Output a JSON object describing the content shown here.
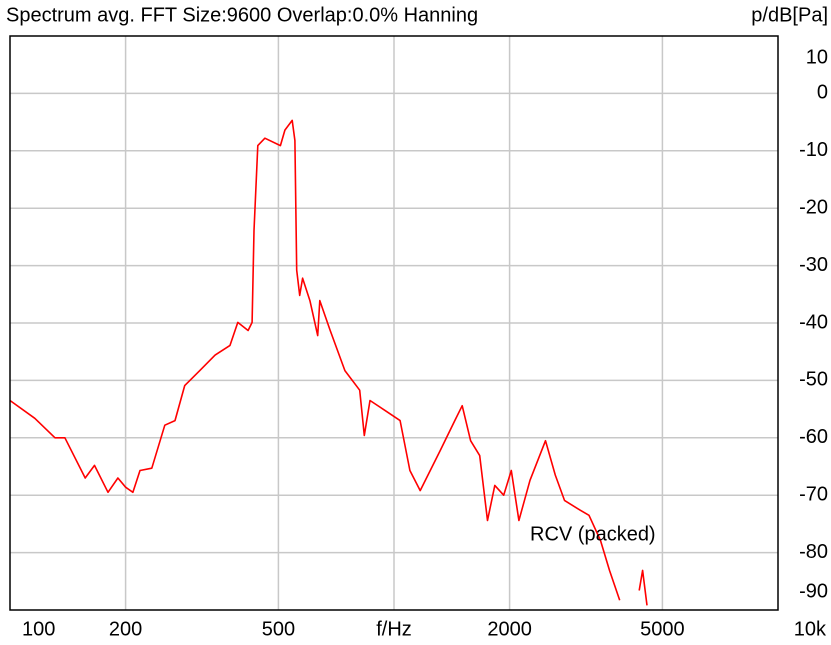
{
  "chart_data": {
    "type": "line",
    "title": "Spectrum avg.  FFT Size:9600  Overlap:0.0%  Hanning",
    "y_label": "p/dB[Pa]",
    "xscale": "log",
    "grid": true,
    "xlim": [
      100,
      10000
    ],
    "ylim": [
      -90,
      10
    ],
    "xticks": [
      100,
      200,
      500,
      {
        "value": 1000,
        "label": "f/Hz"
      },
      2000,
      5000,
      {
        "value": 10000,
        "label": "10k"
      }
    ],
    "yticks": [
      10,
      0,
      -10,
      -20,
      -30,
      -40,
      -50,
      -60,
      -70,
      -80,
      -90
    ],
    "x": [
      100,
      116,
      131,
      139,
      157,
      166,
      180,
      191,
      200,
      209,
      218,
      234,
      253,
      269,
      285,
      312,
      342,
      374,
      392,
      417,
      427,
      432,
      442,
      461,
      506,
      520,
      543,
      552,
      558,
      568,
      578,
      604,
      633,
      641,
      682,
      745,
      814,
      837,
      866,
      945,
      1037,
      1100,
      1170,
      1320,
      1440,
      1505,
      1583,
      1672,
      1752,
      1830,
      1930,
      2020,
      2115,
      2260,
      2480,
      2630,
      2780,
      3050,
      3220,
      3450,
      3640,
      3870,
      4100,
      4350,
      4440,
      4560
    ],
    "series": [
      {
        "name": "RCV (packed)",
        "color": "#ff0000",
        "values": [
          -53.5,
          -56.6,
          -60,
          -60,
          -67,
          -64.8,
          -69.5,
          -67,
          -68.6,
          -69.5,
          -65.7,
          -65.3,
          -57.8,
          -57,
          -50.9,
          -48.3,
          -45.6,
          -43.9,
          -39.9,
          -41.3,
          -39.9,
          -23.9,
          -9.1,
          -7.8,
          -9.1,
          -6.4,
          -4.7,
          -8.2,
          -30.8,
          -35.2,
          -32.2,
          -36.1,
          -42.2,
          -36.1,
          -41.3,
          -48.3,
          -51.7,
          -59.6,
          -53.5,
          -55.2,
          -57,
          -65.7,
          -69.2,
          -62.2,
          -57,
          -54.4,
          -60.5,
          -63.1,
          -74.4,
          -68.3,
          -70,
          -65.7,
          -74.4,
          -67.4,
          -60.5,
          -66.5,
          -70.9,
          -72.6,
          -73.5,
          -77.9,
          -83.1,
          -88.3,
          null,
          -86.6,
          -83.1,
          -89.2
        ]
      }
    ]
  }
}
